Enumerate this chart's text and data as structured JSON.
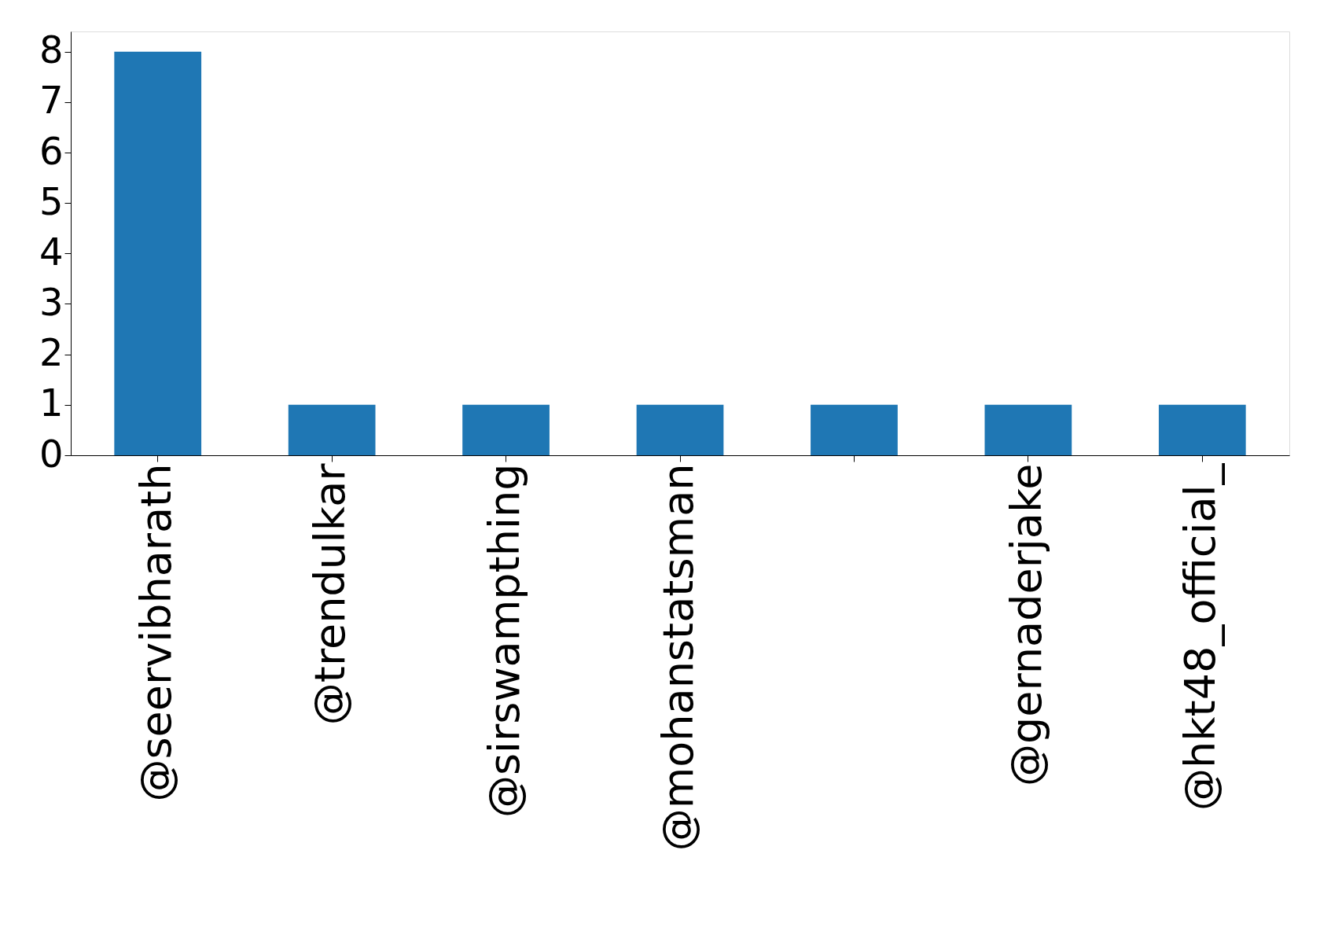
{
  "chart_data": {
    "type": "bar",
    "categories": [
      "@seervibharath",
      "@trendulkar",
      "@sirswampthing",
      "@mohanstatsman",
      null,
      "@gernaderjake",
      "@hkt48_official_"
    ],
    "values": [
      8,
      1,
      1,
      1,
      1,
      1,
      1
    ],
    "color": "#1f77b4",
    "ylim": [
      0,
      8.4
    ],
    "yticks": [
      0,
      1,
      2,
      3,
      4,
      5,
      6,
      7,
      8
    ],
    "grid": false
  }
}
